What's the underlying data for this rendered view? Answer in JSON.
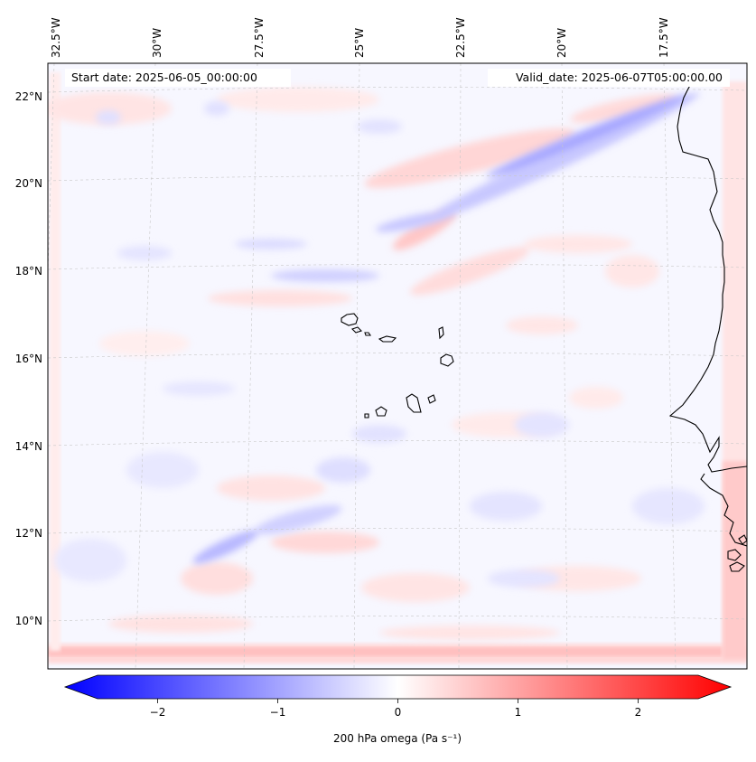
{
  "map": {
    "start_date": "Start date: 2025-06-05_00:00:00",
    "valid_date": "Valid_date: 2025-06-07T05:00:00.00",
    "lon_labels": [
      "32.5°W",
      "30°W",
      "27.5°W",
      "25°W",
      "22.5°W",
      "20°W",
      "17.5°W"
    ],
    "lat_labels": [
      "22°N",
      "20°N",
      "18°N",
      "16°N",
      "14°N",
      "12°N",
      "10°N"
    ],
    "colors": {
      "ocean_neutral": "#f7f7ff",
      "positive": "#ff0000",
      "negative": "#0000ff",
      "coastline": "#000000",
      "gridline": "#c8c8c8"
    }
  },
  "colorbar": {
    "label": "200 hPa omega (Pa s⁻¹)",
    "ticks": [
      "−2",
      "−1",
      "0",
      "1",
      "2"
    ],
    "tick_values": [
      -2,
      -1,
      0,
      1,
      2
    ],
    "range": [
      -2.5,
      2.5
    ],
    "colormap": "bwr"
  }
}
